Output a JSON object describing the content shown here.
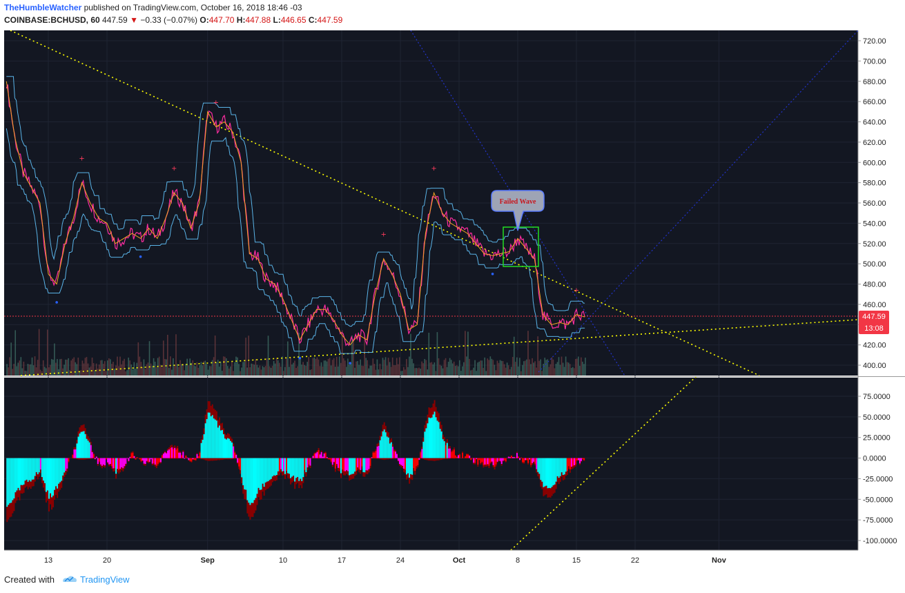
{
  "header": {
    "author": "TheHumbleWatcher",
    "published": " published on TradingView.com, October 16, 2018 18:46 -03",
    "symbol": "COINBASE:BCHUSD, 60",
    "last": "447.59",
    "change": "−0.33 (−0.07%)",
    "o_label": "O:",
    "o_value": "447.70",
    "h_label": "H:",
    "h_value": "447.88",
    "l_label": "L:",
    "l_value": "446.65",
    "c_label": "C:",
    "c_value": "447.59"
  },
  "footer": {
    "created": "Created with",
    "brand": "TradingView"
  },
  "colors": {
    "background": "#131722",
    "price_line": "#ff2da1",
    "envelope": "#5ab4e8",
    "trend_yellow": "#ffff00",
    "trend_blue": "#2233cc",
    "hist_cyan": "#00ffff",
    "hist_red": "#ff0000",
    "hist_dark": "#8b0000",
    "hist_magenta": "#ff00ff",
    "box": "#22dd22",
    "last_price_tag": "#f23645"
  },
  "price_axis": {
    "ticks": [
      "720.00",
      "700.00",
      "680.00",
      "660.00",
      "640.00",
      "620.00",
      "600.00",
      "580.00",
      "560.00",
      "540.00",
      "520.00",
      "500.00",
      "480.00",
      "460.00",
      "440.00",
      "420.00",
      "400.00"
    ],
    "last_price_label": "447.59",
    "countdown": "13:08"
  },
  "osc_axis": {
    "ticks": [
      "75.0000",
      "50.0000",
      "25.0000",
      "0.0000",
      "-25.0000",
      "-50.0000",
      "-75.0000",
      "-100.0000"
    ]
  },
  "time_axis": {
    "labels": [
      "13",
      "20",
      "Sep",
      "10",
      "17",
      "24",
      "Oct",
      "8",
      "15",
      "22",
      "Nov"
    ]
  },
  "annotation": {
    "callout": "Failed Wave"
  },
  "chart_data": {
    "type": "line",
    "title": "COINBASE:BCHUSD, 60",
    "xlabel": "",
    "ylabel": "",
    "ylim": [
      390,
      725
    ],
    "x_range": [
      "2018-08-08",
      "2018-11-16"
    ],
    "series": [
      {
        "values": [
          [
            "2018-08-08",
            680
          ],
          [
            "2018-08-09",
            625
          ],
          [
            "2018-08-10",
            590
          ],
          [
            "2018-08-11",
            575
          ],
          [
            "2018-08-12",
            560
          ],
          [
            "2018-08-13",
            490
          ],
          [
            "2018-08-14",
            480
          ],
          [
            "2018-08-15",
            520
          ],
          [
            "2018-08-16",
            545
          ],
          [
            "2018-08-17",
            580
          ],
          [
            "2018-08-18",
            560
          ],
          [
            "2018-08-19",
            545
          ],
          [
            "2018-08-20",
            540
          ],
          [
            "2018-08-21",
            520
          ],
          [
            "2018-08-22",
            525
          ],
          [
            "2018-08-23",
            530
          ],
          [
            "2018-08-24",
            525
          ],
          [
            "2018-08-25",
            535
          ],
          [
            "2018-08-26",
            525
          ],
          [
            "2018-08-27",
            545
          ],
          [
            "2018-08-28",
            570
          ],
          [
            "2018-08-29",
            560
          ],
          [
            "2018-08-30",
            535
          ],
          [
            "2018-08-31",
            560
          ],
          [
            "2018-09-01",
            650
          ],
          [
            "2018-09-02",
            635
          ],
          [
            "2018-09-03",
            640
          ],
          [
            "2018-09-04",
            630
          ],
          [
            "2018-09-05",
            600
          ],
          [
            "2018-09-06",
            510
          ],
          [
            "2018-09-07",
            505
          ],
          [
            "2018-09-08",
            485
          ],
          [
            "2018-09-09",
            480
          ],
          [
            "2018-09-10",
            465
          ],
          [
            "2018-09-11",
            445
          ],
          [
            "2018-09-12",
            425
          ],
          [
            "2018-09-13",
            440
          ],
          [
            "2018-09-14",
            455
          ],
          [
            "2018-09-15",
            455
          ],
          [
            "2018-09-16",
            445
          ],
          [
            "2018-09-17",
            430
          ],
          [
            "2018-09-18",
            420
          ],
          [
            "2018-09-19",
            430
          ],
          [
            "2018-09-20",
            425
          ],
          [
            "2018-09-21",
            470
          ],
          [
            "2018-09-22",
            505
          ],
          [
            "2018-09-23",
            490
          ],
          [
            "2018-09-24",
            470
          ],
          [
            "2018-09-25",
            435
          ],
          [
            "2018-09-26",
            440
          ],
          [
            "2018-09-27",
            530
          ],
          [
            "2018-09-28",
            570
          ],
          [
            "2018-09-29",
            550
          ],
          [
            "2018-09-30",
            540
          ],
          [
            "2018-10-01",
            535
          ],
          [
            "2018-10-02",
            530
          ],
          [
            "2018-10-03",
            520
          ],
          [
            "2018-10-04",
            510
          ],
          [
            "2018-10-05",
            508
          ],
          [
            "2018-10-06",
            510
          ],
          [
            "2018-10-07",
            512
          ],
          [
            "2018-10-08",
            525
          ],
          [
            "2018-10-09",
            515
          ],
          [
            "2018-10-10",
            505
          ],
          [
            "2018-10-11",
            450
          ],
          [
            "2018-10-12",
            440
          ],
          [
            "2018-10-13",
            442
          ],
          [
            "2018-10-14",
            440
          ],
          [
            "2018-10-15",
            450
          ],
          [
            "2018-10-16",
            447.59
          ]
        ]
      }
    ],
    "histogram": {
      "ylim": [
        -105,
        90
      ],
      "values": [
        [
          "2018-08-08",
          -75
        ],
        [
          "2018-08-09",
          -55
        ],
        [
          "2018-08-10",
          -40
        ],
        [
          "2018-08-11",
          -30
        ],
        [
          "2018-08-12",
          -20
        ],
        [
          "2018-08-13",
          -60
        ],
        [
          "2018-08-14",
          -45
        ],
        [
          "2018-08-15",
          -15
        ],
        [
          "2018-08-16",
          10
        ],
        [
          "2018-08-17",
          45
        ],
        [
          "2018-08-18",
          15
        ],
        [
          "2018-08-19",
          -10
        ],
        [
          "2018-08-20",
          -5
        ],
        [
          "2018-08-21",
          -20
        ],
        [
          "2018-08-22",
          -10
        ],
        [
          "2018-08-23",
          5
        ],
        [
          "2018-08-24",
          -8
        ],
        [
          "2018-08-25",
          -5
        ],
        [
          "2018-08-26",
          -10
        ],
        [
          "2018-08-27",
          10
        ],
        [
          "2018-08-28",
          20
        ],
        [
          "2018-08-29",
          5
        ],
        [
          "2018-08-30",
          -10
        ],
        [
          "2018-08-31",
          10
        ],
        [
          "2018-09-01",
          70
        ],
        [
          "2018-09-02",
          55
        ],
        [
          "2018-09-03",
          30
        ],
        [
          "2018-09-04",
          20
        ],
        [
          "2018-09-05",
          -30
        ],
        [
          "2018-09-06",
          -75
        ],
        [
          "2018-09-07",
          -50
        ],
        [
          "2018-09-08",
          -35
        ],
        [
          "2018-09-09",
          -25
        ],
        [
          "2018-09-10",
          -20
        ],
        [
          "2018-09-11",
          -30
        ],
        [
          "2018-09-12",
          -35
        ],
        [
          "2018-09-13",
          -10
        ],
        [
          "2018-09-14",
          10
        ],
        [
          "2018-09-15",
          5
        ],
        [
          "2018-09-16",
          -10
        ],
        [
          "2018-09-17",
          -20
        ],
        [
          "2018-09-18",
          -25
        ],
        [
          "2018-09-19",
          -15
        ],
        [
          "2018-09-20",
          -20
        ],
        [
          "2018-09-21",
          15
        ],
        [
          "2018-09-22",
          40
        ],
        [
          "2018-09-23",
          20
        ],
        [
          "2018-09-24",
          -10
        ],
        [
          "2018-09-25",
          -25
        ],
        [
          "2018-09-26",
          -15
        ],
        [
          "2018-09-27",
          50
        ],
        [
          "2018-09-28",
          70
        ],
        [
          "2018-09-29",
          30
        ],
        [
          "2018-09-30",
          10
        ],
        [
          "2018-10-01",
          5
        ],
        [
          "2018-10-02",
          3
        ],
        [
          "2018-10-03",
          -5
        ],
        [
          "2018-10-04",
          -8
        ],
        [
          "2018-10-05",
          -10
        ],
        [
          "2018-10-06",
          -5
        ],
        [
          "2018-10-07",
          2
        ],
        [
          "2018-10-08",
          3
        ],
        [
          "2018-10-09",
          -5
        ],
        [
          "2018-10-10",
          -8
        ],
        [
          "2018-10-11",
          -40
        ],
        [
          "2018-10-12",
          -45
        ],
        [
          "2018-10-13",
          -25
        ],
        [
          "2018-10-14",
          -15
        ],
        [
          "2018-10-15",
          -8
        ],
        [
          "2018-10-16",
          -3
        ]
      ]
    },
    "annotations": [
      "Failed Wave"
    ],
    "grid": true
  }
}
